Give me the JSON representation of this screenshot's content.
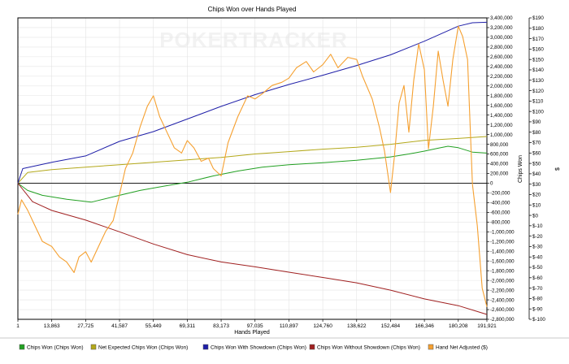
{
  "chart_data": {
    "type": "line",
    "title": "Chips Won over Hands Played",
    "xlabel": "Hands Played",
    "ylabel_left": "",
    "ylabel_right1": "Chips Won",
    "ylabel_right2": "$",
    "watermark": "POKERTRACKER",
    "xlim": [
      1,
      191921
    ],
    "x_ticks": [
      1,
      13863,
      27725,
      41587,
      55449,
      69311,
      83173,
      97035,
      110897,
      124760,
      138622,
      152484,
      166346,
      180208,
      191921
    ],
    "x_tick_labels": [
      "1",
      "13,863",
      "27,725",
      "41,587",
      "55,449",
      "69,311",
      "83,173",
      "97,035",
      "110,897",
      "124,760",
      "138,622",
      "152,484",
      "166,346",
      "180,208",
      "191,921"
    ],
    "ylim_chips": [
      -2800000,
      3400000
    ],
    "chips_ticks": [
      3400000,
      3200000,
      3000000,
      2800000,
      2600000,
      2400000,
      2200000,
      2000000,
      1800000,
      1600000,
      1400000,
      1200000,
      1000000,
      800000,
      600000,
      400000,
      200000,
      0,
      -200000,
      -400000,
      -600000,
      -800000,
      -1000000,
      -1200000,
      -1400000,
      -1600000,
      -1800000,
      -2000000,
      -2200000,
      -2400000,
      -2600000,
      -2800000
    ],
    "chips_tick_labels": [
      "3,400,000",
      "3,200,000",
      "3,000,000",
      "2,800,000",
      "2,600,000",
      "2,400,000",
      "2,200,000",
      "2,000,000",
      "1,800,000",
      "1,600,000",
      "1,400,000",
      "1,200,000",
      "1,000,000",
      "800,000",
      "600,000",
      "400,000",
      "200,000",
      "0",
      "-200,000",
      "-400,000",
      "-600,000",
      "-800,000",
      "-1,000,000",
      "-1,200,000",
      "-1,400,000",
      "-1,600,000",
      "-1,800,000",
      "-2,000,000",
      "-2,200,000",
      "-2,400,000",
      "-2,600,000",
      "-2,800,000"
    ],
    "ylim_dollars": [
      -100,
      190
    ],
    "dollar_ticks": [
      190,
      180,
      170,
      160,
      150,
      140,
      130,
      120,
      110,
      100,
      90,
      80,
      70,
      60,
      50,
      40,
      30,
      20,
      10,
      0,
      -10,
      -20,
      -30,
      -40,
      -50,
      -60,
      -70,
      -80,
      -90,
      -100
    ],
    "dollar_tick_labels": [
      "$190",
      "$180",
      "$170",
      "$160",
      "$150",
      "$140",
      "$130",
      "$120",
      "$110",
      "$100",
      "$90",
      "$80",
      "$70",
      "$60",
      "$50",
      "$40",
      "$30",
      "$20",
      "$10",
      "$0",
      "$-10",
      "$-20",
      "$-30",
      "$-40",
      "$-50",
      "$-60",
      "$-70",
      "$-80",
      "$-90",
      "$-100"
    ],
    "grid": true,
    "legend_position": "bottom",
    "series": [
      {
        "name": "Chips Won (Chips Won)",
        "color": "#22a022",
        "axis": "chips",
        "x": [
          1,
          4000,
          10000,
          20000,
          30000,
          41587,
          50000,
          60000,
          69311,
          80000,
          90000,
          100000,
          110897,
          124760,
          138622,
          152484,
          160000,
          166346,
          172000,
          176000,
          180208,
          186000,
          191921
        ],
        "y": [
          0,
          -150000,
          -250000,
          -330000,
          -390000,
          -250000,
          -150000,
          -60000,
          20000,
          150000,
          250000,
          330000,
          380000,
          420000,
          470000,
          540000,
          600000,
          660000,
          720000,
          760000,
          730000,
          640000,
          620000
        ]
      },
      {
        "name": "Net Expected Chips Won (Chips Won)",
        "color": "#b3a81a",
        "axis": "chips",
        "x": [
          1,
          4000,
          13863,
          27725,
          41587,
          55449,
          69311,
          83173,
          97035,
          110897,
          124760,
          138622,
          152484,
          166346,
          180208,
          191921
        ],
        "y": [
          0,
          220000,
          280000,
          330000,
          380000,
          430000,
          480000,
          530000,
          600000,
          650000,
          700000,
          740000,
          800000,
          880000,
          920000,
          960000
        ]
      },
      {
        "name": "Chips Won With Showdown (Chips Won)",
        "color": "#1f1fa8",
        "axis": "chips",
        "x": [
          1,
          2000,
          13863,
          27725,
          41587,
          55449,
          69311,
          83173,
          97035,
          110897,
          124760,
          138622,
          152484,
          166346,
          180208,
          186000,
          191921
        ],
        "y": [
          0,
          300000,
          430000,
          560000,
          860000,
          1060000,
          1320000,
          1580000,
          1820000,
          2030000,
          2220000,
          2420000,
          2640000,
          2920000,
          3230000,
          3300000,
          3310000
        ]
      },
      {
        "name": "Chips Won Without Showdown (Chips Won)",
        "color": "#a02020",
        "axis": "chips",
        "x": [
          1,
          6000,
          13863,
          27725,
          41587,
          55449,
          69311,
          83173,
          97035,
          110897,
          124760,
          138622,
          152484,
          166346,
          180208,
          191921
        ],
        "y": [
          0,
          -380000,
          -560000,
          -760000,
          -1000000,
          -1250000,
          -1470000,
          -1620000,
          -1720000,
          -1830000,
          -1940000,
          -2050000,
          -2200000,
          -2380000,
          -2520000,
          -2700000
        ]
      },
      {
        "name": "Hand Net Adjusted ($)",
        "color": "#f5a030",
        "axis": "dollars",
        "x": [
          1,
          1500,
          4000,
          7000,
          10000,
          13863,
          17000,
          20000,
          23000,
          25000,
          27725,
          30000,
          33000,
          36000,
          39000,
          41587,
          44000,
          47000,
          50000,
          53000,
          55449,
          58000,
          61000,
          64000,
          67000,
          69311,
          72000,
          75000,
          78000,
          80000,
          83173,
          86000,
          90000,
          94000,
          97035,
          100000,
          104000,
          108000,
          110897,
          114000,
          118000,
          121000,
          124760,
          128000,
          131000,
          135000,
          138622,
          141000,
          145000,
          148000,
          150000,
          152484,
          154000,
          156000,
          158000,
          160000,
          162000,
          164000,
          166346,
          168000,
          170000,
          172000,
          174000,
          176000,
          178000,
          180208,
          182000,
          184000,
          186000,
          188000,
          190000,
          191921
        ],
        "y": [
          1,
          15,
          5,
          -10,
          -25,
          -30,
          -40,
          -45,
          -55,
          -40,
          -35,
          -45,
          -30,
          -15,
          -5,
          20,
          45,
          60,
          85,
          105,
          115,
          95,
          80,
          65,
          60,
          72,
          65,
          52,
          55,
          45,
          38,
          70,
          95,
          115,
          112,
          117,
          125,
          128,
          132,
          142,
          148,
          138,
          145,
          155,
          142,
          152,
          150,
          134,
          112,
          84,
          62,
          22,
          55,
          108,
          125,
          80,
          130,
          165,
          140,
          64,
          105,
          158,
          130,
          105,
          150,
          182,
          172,
          150,
          30,
          -10,
          -70,
          -88
        ]
      }
    ]
  }
}
